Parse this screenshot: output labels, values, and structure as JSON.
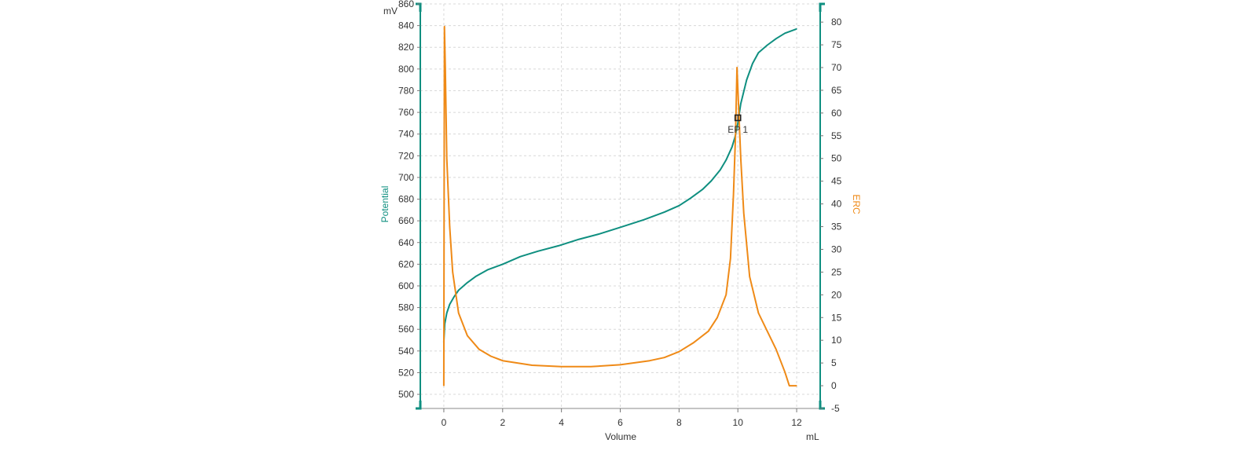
{
  "chart_data": {
    "type": "line",
    "xlabel": "Volume",
    "x_unit": "mL",
    "xlim": [
      -0.8,
      12.8
    ],
    "x_ticks": [
      0,
      2,
      4,
      6,
      8,
      10,
      12
    ],
    "y_left": {
      "label": "Potential",
      "unit": "mV",
      "lim": [
        487,
        860
      ],
      "ticks": [
        500,
        520,
        540,
        560,
        580,
        600,
        620,
        640,
        660,
        680,
        700,
        720,
        740,
        760,
        780,
        800,
        820,
        840,
        860
      ],
      "color": "#0f8f80"
    },
    "y_right": {
      "label": "ERC",
      "lim": [
        -5,
        84
      ],
      "ticks": [
        -5,
        0,
        5,
        10,
        15,
        20,
        25,
        30,
        35,
        40,
        45,
        50,
        55,
        60,
        65,
        70,
        75,
        80
      ],
      "color": "#ef8a17"
    },
    "grid": true,
    "series": [
      {
        "name": "Potential",
        "axis": "left",
        "color": "#0f8f80",
        "x": [
          0.0,
          0.03,
          0.1,
          0.2,
          0.35,
          0.5,
          0.8,
          1.1,
          1.5,
          2.0,
          2.6,
          3.2,
          3.9,
          4.6,
          5.3,
          6.0,
          6.8,
          7.5,
          8.0,
          8.4,
          8.8,
          9.1,
          9.4,
          9.6,
          9.8,
          9.9,
          10.0,
          10.1,
          10.3,
          10.5,
          10.7,
          11.0,
          11.3,
          11.6,
          12.0
        ],
        "y": [
          548,
          565,
          575,
          583,
          590,
          596,
          603,
          609,
          615,
          620,
          627,
          632,
          637,
          643,
          648,
          654,
          661,
          668,
          674,
          681,
          689,
          697,
          707,
          716,
          728,
          737,
          750,
          768,
          790,
          805,
          815,
          822,
          828,
          833,
          837
        ]
      },
      {
        "name": "ERC",
        "axis": "right",
        "color": "#ef8a17",
        "x": [
          0.0,
          0.02,
          0.05,
          0.1,
          0.2,
          0.3,
          0.5,
          0.8,
          1.2,
          1.6,
          2.0,
          3.0,
          4.0,
          5.0,
          6.0,
          7.0,
          7.5,
          8.0,
          8.5,
          9.0,
          9.3,
          9.6,
          9.75,
          9.85,
          9.92,
          9.97,
          10.02,
          10.1,
          10.2,
          10.4,
          10.7,
          11.0,
          11.3,
          11.6,
          11.75,
          12.0
        ],
        "y": [
          0,
          79,
          70,
          50,
          35,
          25,
          16,
          11,
          8,
          6.5,
          5.5,
          4.5,
          4.2,
          4.2,
          4.6,
          5.5,
          6.2,
          7.5,
          9.5,
          12,
          15,
          20,
          28,
          42,
          55,
          70,
          62,
          50,
          38,
          24,
          16,
          12,
          8,
          3,
          0,
          0
        ]
      }
    ],
    "annotation": {
      "label": "EP 1",
      "x": 10.0,
      "y_left": 755
    }
  }
}
